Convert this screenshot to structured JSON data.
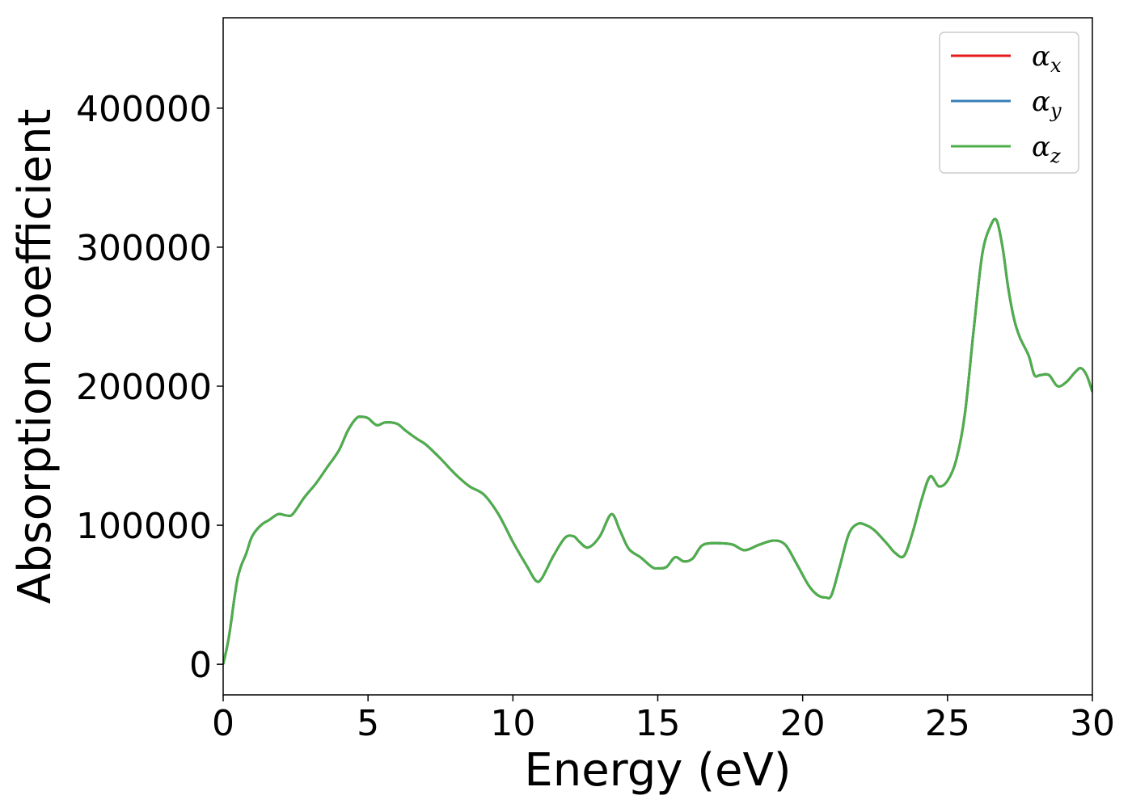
{
  "chart_data": {
    "type": "line",
    "title": "",
    "xlabel": "Energy (eV)",
    "ylabel": "Absorption coefficient",
    "xlim": [
      0,
      30
    ],
    "ylim": [
      -22000,
      465000
    ],
    "xticks": [
      0,
      5,
      10,
      15,
      20,
      25,
      30
    ],
    "xtick_labels": [
      "0",
      "5",
      "10",
      "15",
      "20",
      "25",
      "30"
    ],
    "yticks": [
      0,
      100000,
      200000,
      300000,
      400000
    ],
    "ytick_labels": [
      "0",
      "100000",
      "200000",
      "300000",
      "400000"
    ],
    "grid": false,
    "legend_position": "top-right",
    "series": [
      {
        "name": "α_x",
        "label_base": "α",
        "label_sub": "x",
        "color": "#e41a1c",
        "x": [
          0,
          0.2,
          0.5,
          0.8,
          1.0,
          1.3,
          1.6,
          1.9,
          2.2,
          2.4,
          2.8,
          3.2,
          3.6,
          4.0,
          4.3,
          4.6,
          4.8,
          5.0,
          5.3,
          5.6,
          6.0,
          6.3,
          6.7,
          7.0,
          7.5,
          8.0,
          8.5,
          9.0,
          9.5,
          10.0,
          10.5,
          10.8,
          11.0,
          11.4,
          11.8,
          12.1,
          12.3,
          12.6,
          13.0,
          13.4,
          13.7,
          14.0,
          14.4,
          14.8,
          15.0,
          15.3,
          15.6,
          15.9,
          16.2,
          16.5,
          16.8,
          17.2,
          17.6,
          18.0,
          18.5,
          19.0,
          19.4,
          19.8,
          20.2,
          20.5,
          20.8,
          21.0,
          21.3,
          21.6,
          21.9,
          22.2,
          22.5,
          22.9,
          23.2,
          23.5,
          23.8,
          24.1,
          24.4,
          24.7,
          25.0,
          25.3,
          25.6,
          25.9,
          26.2,
          26.5,
          26.7,
          26.9,
          27.1,
          27.3,
          27.5,
          27.8,
          28.0,
          28.2,
          28.5,
          28.8,
          29.1,
          29.4,
          29.6,
          29.8,
          30.0
        ],
        "y": [
          0,
          20000,
          62000,
          80000,
          92000,
          100000,
          104000,
          108000,
          107000,
          108000,
          120000,
          130000,
          142000,
          154000,
          168000,
          177000,
          178000,
          177000,
          172000,
          174000,
          173000,
          168000,
          162000,
          158000,
          148000,
          137000,
          128000,
          122000,
          108000,
          88000,
          70000,
          60000,
          62000,
          78000,
          91000,
          92000,
          88000,
          84000,
          92000,
          108000,
          96000,
          83000,
          77000,
          70000,
          69000,
          70000,
          77000,
          74000,
          76000,
          85000,
          87000,
          87000,
          86000,
          82000,
          86000,
          89000,
          86000,
          72000,
          57000,
          50000,
          48000,
          50000,
          72000,
          94000,
          101000,
          100000,
          96000,
          87000,
          80000,
          78000,
          95000,
          118000,
          135000,
          128000,
          132000,
          147000,
          180000,
          240000,
          295000,
          316000,
          319000,
          300000,
          270000,
          248000,
          235000,
          222000,
          208000,
          208000,
          208000,
          200000,
          203000,
          210000,
          213000,
          208000,
          196000
        ]
      },
      {
        "name": "α_y",
        "label_base": "α",
        "label_sub": "y",
        "color": "#377eb8",
        "x": [
          0,
          0.2,
          0.5,
          0.8,
          1.0,
          1.3,
          1.6,
          1.9,
          2.2,
          2.4,
          2.8,
          3.2,
          3.6,
          4.0,
          4.3,
          4.6,
          4.8,
          5.0,
          5.3,
          5.6,
          6.0,
          6.3,
          6.7,
          7.0,
          7.5,
          8.0,
          8.5,
          9.0,
          9.5,
          10.0,
          10.5,
          10.8,
          11.0,
          11.4,
          11.8,
          12.1,
          12.3,
          12.6,
          13.0,
          13.4,
          13.7,
          14.0,
          14.4,
          14.8,
          15.0,
          15.3,
          15.6,
          15.9,
          16.2,
          16.5,
          16.8,
          17.2,
          17.6,
          18.0,
          18.5,
          19.0,
          19.4,
          19.8,
          20.2,
          20.5,
          20.8,
          21.0,
          21.3,
          21.6,
          21.9,
          22.2,
          22.5,
          22.9,
          23.2,
          23.5,
          23.8,
          24.1,
          24.4,
          24.7,
          25.0,
          25.3,
          25.6,
          25.9,
          26.2,
          26.5,
          26.7,
          26.9,
          27.1,
          27.3,
          27.5,
          27.8,
          28.0,
          28.2,
          28.5,
          28.8,
          29.1,
          29.4,
          29.6,
          29.8,
          30.0
        ],
        "y": [
          0,
          20000,
          62000,
          80000,
          92000,
          100000,
          104000,
          108000,
          107000,
          108000,
          120000,
          130000,
          142000,
          154000,
          168000,
          177000,
          178000,
          177000,
          172000,
          174000,
          173000,
          168000,
          162000,
          158000,
          148000,
          137000,
          128000,
          122000,
          108000,
          88000,
          70000,
          60000,
          62000,
          78000,
          91000,
          92000,
          88000,
          84000,
          92000,
          108000,
          96000,
          83000,
          77000,
          70000,
          69000,
          70000,
          77000,
          74000,
          76000,
          85000,
          87000,
          87000,
          86000,
          82000,
          86000,
          89000,
          86000,
          72000,
          57000,
          50000,
          48000,
          50000,
          72000,
          94000,
          101000,
          100000,
          96000,
          87000,
          80000,
          78000,
          95000,
          118000,
          135000,
          128000,
          132000,
          147000,
          180000,
          240000,
          295000,
          316000,
          319000,
          300000,
          270000,
          248000,
          235000,
          222000,
          208000,
          208000,
          208000,
          200000,
          203000,
          210000,
          213000,
          208000,
          196000
        ]
      },
      {
        "name": "α_z",
        "label_base": "α",
        "label_sub": "z",
        "color": "#4daf4a",
        "x": [
          0,
          0.2,
          0.5,
          0.8,
          1.0,
          1.3,
          1.6,
          1.9,
          2.2,
          2.4,
          2.8,
          3.2,
          3.6,
          4.0,
          4.3,
          4.6,
          4.8,
          5.0,
          5.3,
          5.6,
          6.0,
          6.3,
          6.7,
          7.0,
          7.5,
          8.0,
          8.5,
          9.0,
          9.5,
          10.0,
          10.5,
          10.8,
          11.0,
          11.4,
          11.8,
          12.1,
          12.3,
          12.6,
          13.0,
          13.4,
          13.7,
          14.0,
          14.4,
          14.8,
          15.0,
          15.3,
          15.6,
          15.9,
          16.2,
          16.5,
          16.8,
          17.2,
          17.6,
          18.0,
          18.5,
          19.0,
          19.4,
          19.8,
          20.2,
          20.5,
          20.8,
          21.0,
          21.3,
          21.6,
          21.9,
          22.2,
          22.5,
          22.9,
          23.2,
          23.5,
          23.8,
          24.1,
          24.4,
          24.7,
          25.0,
          25.3,
          25.6,
          25.9,
          26.2,
          26.5,
          26.7,
          26.9,
          27.1,
          27.3,
          27.5,
          27.8,
          28.0,
          28.2,
          28.5,
          28.8,
          29.1,
          29.4,
          29.6,
          29.8,
          30.0
        ],
        "y": [
          0,
          20000,
          62000,
          80000,
          92000,
          100000,
          104000,
          108000,
          107000,
          108000,
          120000,
          130000,
          142000,
          154000,
          168000,
          177000,
          178000,
          177000,
          172000,
          174000,
          173000,
          168000,
          162000,
          158000,
          148000,
          137000,
          128000,
          122000,
          108000,
          88000,
          70000,
          60000,
          62000,
          78000,
          91000,
          92000,
          88000,
          84000,
          92000,
          108000,
          96000,
          83000,
          77000,
          70000,
          69000,
          70000,
          77000,
          74000,
          76000,
          85000,
          87000,
          87000,
          86000,
          82000,
          86000,
          89000,
          86000,
          72000,
          57000,
          50000,
          48000,
          50000,
          72000,
          94000,
          101000,
          100000,
          96000,
          87000,
          80000,
          78000,
          95000,
          118000,
          135000,
          128000,
          132000,
          147000,
          180000,
          240000,
          295000,
          316000,
          319000,
          300000,
          270000,
          248000,
          235000,
          222000,
          208000,
          208000,
          208000,
          200000,
          203000,
          210000,
          213000,
          208000,
          196000
        ]
      }
    ]
  }
}
